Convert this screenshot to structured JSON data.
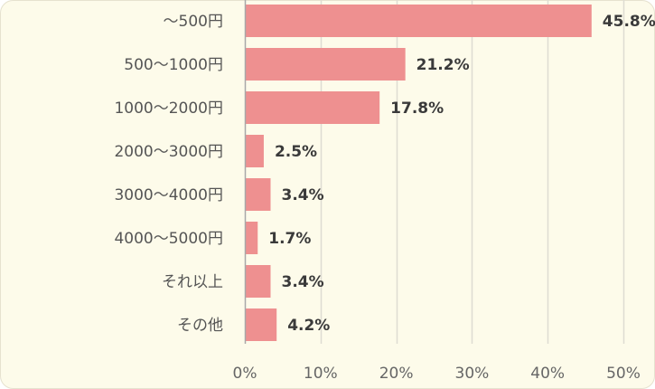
{
  "chart_data": {
    "type": "bar",
    "orientation": "horizontal",
    "categories": [
      "～500円",
      "500～1000円",
      "1000～2000円",
      "2000～3000円",
      "3000～4000円",
      "4000～5000円",
      "それ以上",
      "その他"
    ],
    "values": [
      45.8,
      21.2,
      17.8,
      2.5,
      3.4,
      1.7,
      3.4,
      4.2
    ],
    "value_labels": [
      "45.8%",
      "21.2%",
      "17.8%",
      "2.5%",
      "3.4%",
      "1.7%",
      "3.4%",
      "4.2%"
    ],
    "x_ticks": [
      0,
      10,
      20,
      30,
      40,
      50
    ],
    "x_tick_labels": [
      "0%",
      "10%",
      "20%",
      "30%",
      "40%",
      "50%"
    ],
    "xlim": [
      0,
      50
    ],
    "title": "",
    "xlabel": "",
    "ylabel": "",
    "grid": "vertical",
    "legend": "none"
  },
  "colors": {
    "background": "#fdfbea",
    "border": "#e6e2cf",
    "bar": "#ee9090",
    "grid": "#dedcd2",
    "axis": "#a8a8a8",
    "category_text": "#555555",
    "tick_text": "#666666",
    "value_text": "#3a3a3a"
  }
}
